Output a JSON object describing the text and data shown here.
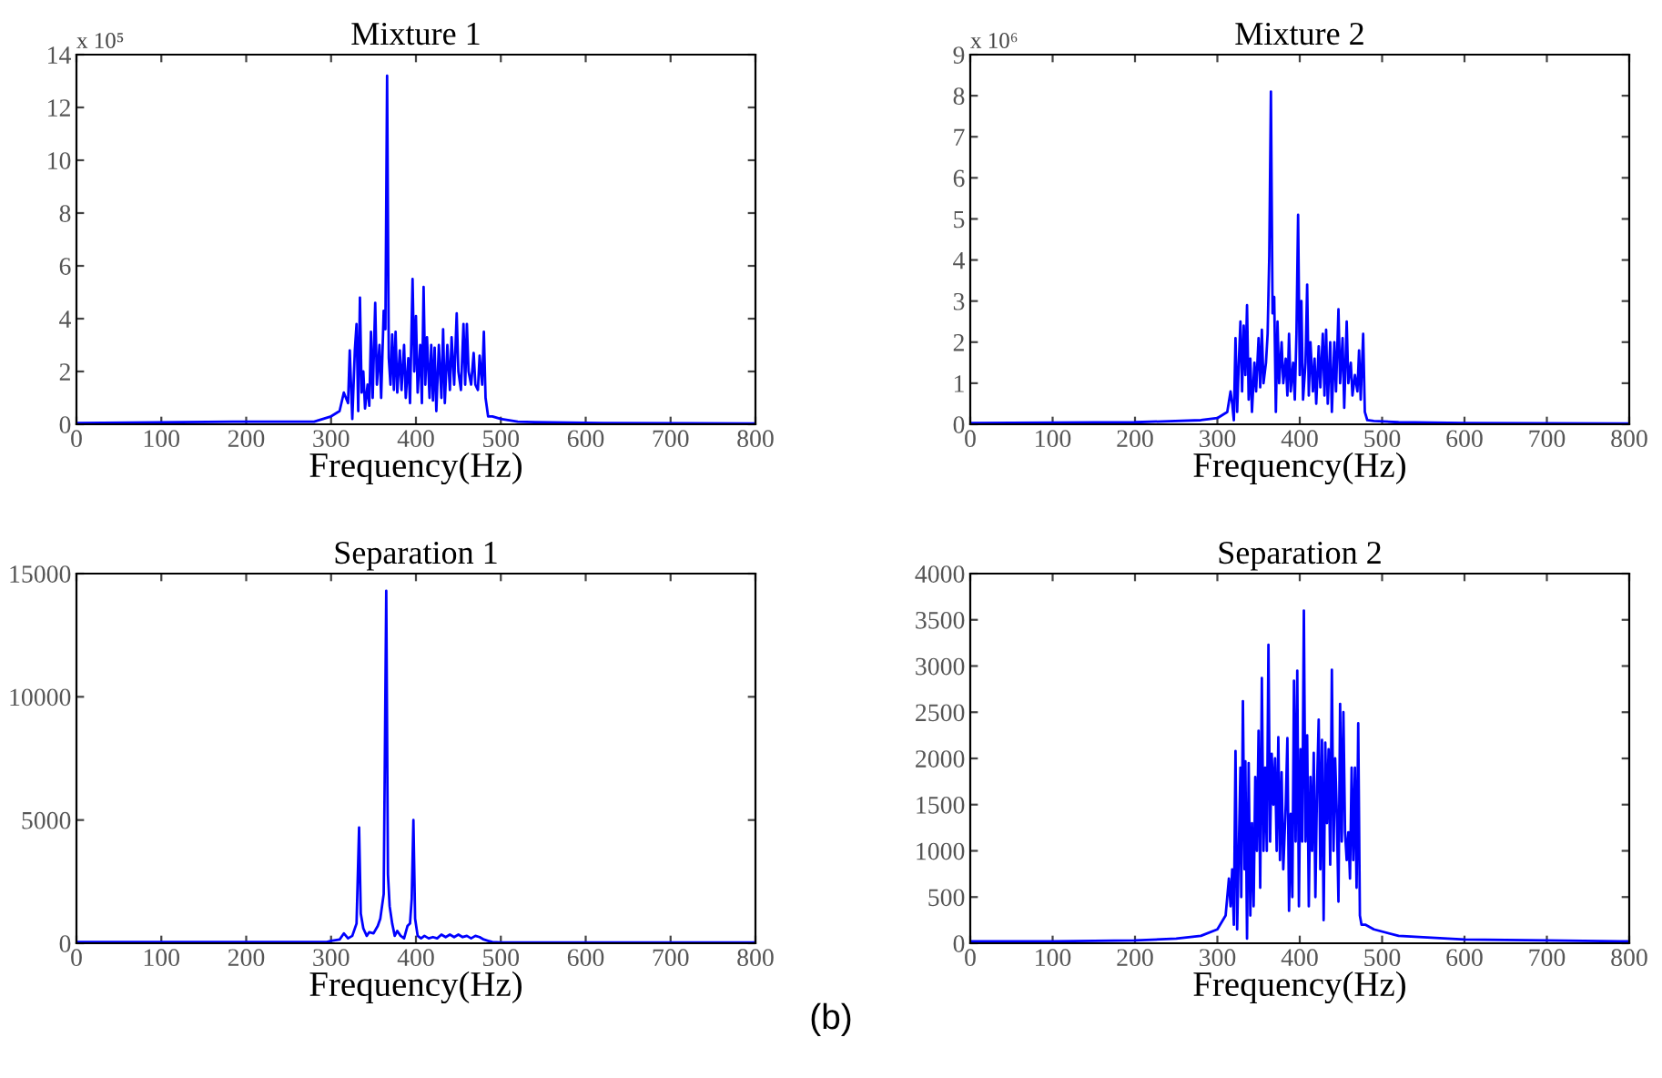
{
  "chart_data": [
    {
      "type": "line",
      "title": "Mixture 1",
      "xlabel": "Frequency(Hz)",
      "annotations": [
        "x 10⁵"
      ],
      "xlim": [
        0,
        800
      ],
      "xticks": [
        0,
        100,
        200,
        300,
        400,
        500,
        600,
        700,
        800
      ],
      "ylim": [
        0,
        14
      ],
      "yticks": [
        0,
        2,
        4,
        6,
        8,
        10,
        12,
        14
      ],
      "series": [
        {
          "color": "#0000ff",
          "x": [
            0,
            200,
            280,
            300,
            310,
            315,
            320,
            322,
            325,
            328,
            330,
            332,
            334,
            336,
            338,
            340,
            343,
            345,
            347,
            349,
            352,
            354,
            357,
            359,
            362,
            364,
            366,
            368,
            370,
            372,
            374,
            376,
            378,
            381,
            383,
            386,
            388,
            391,
            393,
            396,
            398,
            400,
            402,
            405,
            407,
            409,
            411,
            413,
            416,
            418,
            420,
            422,
            424,
            427,
            430,
            432,
            434,
            437,
            440,
            442,
            445,
            448,
            450,
            453,
            456,
            458,
            460,
            462,
            465,
            468,
            470,
            473,
            475,
            478,
            480,
            482,
            485,
            490,
            500,
            520,
            540,
            620,
            800
          ],
          "values": [
            0.05,
            0.1,
            0.1,
            0.3,
            0.5,
            1.2,
            0.8,
            2.8,
            0.2,
            2.8,
            3.8,
            0.5,
            4.8,
            1.2,
            2.0,
            0.6,
            1.5,
            0.7,
            3.5,
            1.0,
            4.6,
            1.5,
            3.0,
            1.0,
            4.3,
            3.6,
            13.2,
            2.5,
            1.5,
            3.4,
            1.3,
            3.5,
            1.2,
            2.8,
            1.3,
            3.0,
            1.0,
            2.5,
            0.8,
            5.5,
            2.0,
            4.1,
            1.2,
            3.0,
            0.8,
            5.2,
            1.5,
            3.3,
            1.0,
            3.0,
            0.9,
            2.9,
            0.5,
            3.0,
            1.0,
            3.6,
            0.8,
            3.0,
            1.3,
            3.3,
            1.5,
            4.2,
            2.0,
            1.3,
            3.8,
            1.5,
            3.8,
            2.0,
            1.5,
            2.7,
            1.5,
            1.3,
            2.6,
            1.5,
            3.5,
            1.0,
            0.3,
            0.3,
            0.2,
            0.1,
            0.08,
            0.05,
            0.03
          ]
        }
      ]
    },
    {
      "type": "line",
      "title": "Mixture 2",
      "xlabel": "Frequency(Hz)",
      "annotations": [
        "x 10⁶"
      ],
      "xlim": [
        0,
        800
      ],
      "xticks": [
        0,
        100,
        200,
        300,
        400,
        500,
        600,
        700,
        800
      ],
      "ylim": [
        0,
        9
      ],
      "yticks": [
        0,
        1,
        2,
        3,
        4,
        5,
        6,
        7,
        8,
        9
      ],
      "series": [
        {
          "color": "#0000ff",
          "x": [
            0,
            200,
            280,
            300,
            312,
            316,
            318,
            320,
            322,
            324,
            326,
            328,
            330,
            332,
            334,
            336,
            338,
            340,
            342,
            345,
            347,
            350,
            352,
            354,
            356,
            359,
            361,
            363,
            365,
            367,
            369,
            371,
            373,
            375,
            378,
            380,
            383,
            385,
            387,
            389,
            392,
            394,
            396,
            398,
            400,
            402,
            404,
            407,
            409,
            411,
            413,
            416,
            418,
            420,
            423,
            425,
            428,
            430,
            432,
            434,
            437,
            439,
            442,
            444,
            447,
            449,
            452,
            454,
            457,
            459,
            462,
            464,
            467,
            470,
            472,
            474,
            477,
            479,
            482,
            490,
            520,
            600,
            800
          ],
          "values": [
            0.03,
            0.05,
            0.1,
            0.15,
            0.3,
            0.8,
            0.5,
            0.1,
            2.1,
            0.3,
            1.5,
            2.5,
            0.8,
            2.4,
            1.2,
            2.9,
            0.6,
            1.6,
            0.3,
            1.5,
            0.8,
            2.1,
            0.9,
            2.3,
            1.0,
            1.5,
            2.2,
            4.1,
            8.1,
            2.7,
            3.1,
            0.3,
            2.5,
            1.0,
            2.0,
            1.0,
            1.6,
            0.7,
            2.2,
            0.8,
            1.5,
            0.6,
            2.2,
            5.1,
            1.2,
            3.0,
            0.6,
            1.5,
            3.4,
            0.7,
            2.0,
            0.8,
            1.6,
            0.5,
            1.9,
            0.9,
            2.2,
            0.7,
            2.3,
            0.5,
            2.0,
            0.3,
            2.0,
            0.8,
            2.8,
            1.0,
            2.1,
            0.4,
            2.5,
            1.0,
            1.5,
            0.7,
            1.2,
            0.8,
            1.8,
            0.6,
            2.2,
            0.3,
            0.1,
            0.08,
            0.05,
            0.03,
            0.02
          ]
        }
      ]
    },
    {
      "type": "line",
      "title": "Separation 1",
      "xlabel": "Frequency(Hz)",
      "xlim": [
        0,
        800
      ],
      "xticks": [
        0,
        100,
        200,
        300,
        400,
        500,
        600,
        700,
        800
      ],
      "ylim": [
        0,
        15000
      ],
      "yticks": [
        0,
        5000,
        10000,
        15000
      ],
      "series": [
        {
          "color": "#0000ff",
          "x": [
            0,
            295,
            300,
            310,
            315,
            320,
            325,
            330,
            333,
            335,
            338,
            342,
            345,
            350,
            355,
            358,
            362,
            365,
            367,
            369,
            372,
            375,
            378,
            382,
            386,
            390,
            393,
            395,
            397,
            399,
            402,
            406,
            410,
            415,
            420,
            425,
            430,
            435,
            440,
            445,
            450,
            455,
            460,
            465,
            470,
            475,
            480,
            485,
            490,
            500,
            800
          ],
          "values": [
            50,
            50,
            100,
            150,
            400,
            200,
            300,
            800,
            4700,
            1200,
            600,
            300,
            450,
            400,
            700,
            1000,
            2000,
            14300,
            2800,
            1500,
            800,
            300,
            500,
            300,
            200,
            700,
            800,
            1800,
            5000,
            1000,
            300,
            200,
            300,
            200,
            250,
            200,
            350,
            250,
            350,
            250,
            350,
            250,
            300,
            200,
            300,
            250,
            150,
            100,
            50,
            30,
            30
          ]
        }
      ]
    },
    {
      "type": "line",
      "title": "Separation 2",
      "xlabel": "Frequency(Hz)",
      "annotations": [
        "(b)"
      ],
      "xlim": [
        0,
        800
      ],
      "xticks": [
        0,
        100,
        200,
        300,
        400,
        500,
        600,
        700,
        800
      ],
      "ylim": [
        0,
        4000
      ],
      "yticks": [
        0,
        500,
        1000,
        1500,
        2000,
        2500,
        3000,
        3500,
        4000
      ],
      "series": [
        {
          "color": "#0000ff",
          "x": [
            0,
            100,
            200,
            250,
            280,
            300,
            310,
            314,
            316,
            318,
            320,
            322,
            324,
            326,
            328,
            329,
            331,
            333,
            334,
            336,
            338,
            340,
            342,
            344,
            346,
            348,
            350,
            352,
            354,
            356,
            358,
            360,
            362,
            364,
            366,
            368,
            370,
            372,
            374,
            376,
            378,
            380,
            383,
            385,
            387,
            389,
            391,
            393,
            395,
            397,
            399,
            401,
            403,
            405,
            407,
            409,
            411,
            413,
            415,
            417,
            419,
            421,
            423,
            425,
            427,
            429,
            431,
            433,
            435,
            437,
            439,
            441,
            443,
            445,
            447,
            449,
            451,
            453,
            455,
            457,
            459,
            461,
            463,
            465,
            467,
            469,
            471,
            473,
            475,
            480,
            490,
            520,
            600,
            700,
            800
          ],
          "values": [
            20,
            20,
            30,
            50,
            80,
            150,
            300,
            700,
            400,
            800,
            200,
            2080,
            150,
            1000,
            1900,
            500,
            2620,
            800,
            1970,
            50,
            1950,
            300,
            1300,
            400,
            1800,
            1000,
            2300,
            600,
            2870,
            1000,
            1900,
            1000,
            3230,
            1100,
            2050,
            1500,
            2000,
            1000,
            2230,
            900,
            1850,
            800,
            1500,
            2220,
            350,
            1400,
            500,
            2840,
            1100,
            2950,
            400,
            2100,
            1100,
            3600,
            1100,
            2250,
            400,
            1800,
            1000,
            2060,
            500,
            1700,
            2420,
            800,
            2200,
            250,
            2170,
            1300,
            2100,
            850,
            2960,
            1000,
            2000,
            1400,
            450,
            2590,
            1100,
            2500,
            1200,
            900,
            1200,
            700,
            1900,
            900,
            1900,
            600,
            2380,
            300,
            200,
            200,
            150,
            80,
            40,
            30,
            20
          ]
        }
      ]
    }
  ]
}
